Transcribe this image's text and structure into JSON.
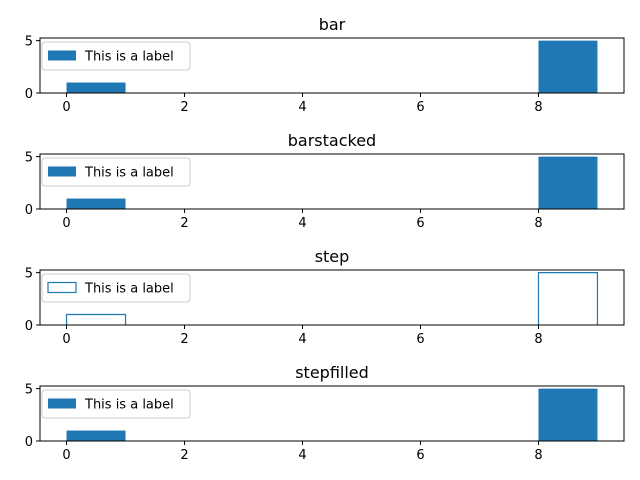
{
  "style": {
    "bar_color": "#1f77b4"
  },
  "chart_data": [
    {
      "type": "bar",
      "histtype": "bar",
      "title": "bar",
      "bin_edges": [
        0,
        1,
        2,
        3,
        4,
        5,
        6,
        7,
        8,
        9
      ],
      "values": [
        1,
        0,
        0,
        0,
        0,
        0,
        0,
        0,
        5
      ],
      "series_label": "This is a label",
      "xlim": [
        -0.45,
        9.45
      ],
      "ylim": [
        0,
        5.25
      ],
      "xticks": [
        0,
        2,
        4,
        6,
        8
      ],
      "yticks": [
        0,
        5
      ],
      "legend": "top-left"
    },
    {
      "type": "bar",
      "histtype": "barstacked",
      "title": "barstacked",
      "bin_edges": [
        0,
        1,
        2,
        3,
        4,
        5,
        6,
        7,
        8,
        9
      ],
      "values": [
        1,
        0,
        0,
        0,
        0,
        0,
        0,
        0,
        5
      ],
      "series_label": "This is a label",
      "xlim": [
        -0.45,
        9.45
      ],
      "ylim": [
        0,
        5.25
      ],
      "xticks": [
        0,
        2,
        4,
        6,
        8
      ],
      "yticks": [
        0,
        5
      ],
      "legend": "top-left"
    },
    {
      "type": "bar",
      "histtype": "step",
      "title": "step",
      "bin_edges": [
        0,
        1,
        2,
        3,
        4,
        5,
        6,
        7,
        8,
        9
      ],
      "values": [
        1,
        0,
        0,
        0,
        0,
        0,
        0,
        0,
        5
      ],
      "series_label": "This is a label",
      "xlim": [
        -0.45,
        9.45
      ],
      "ylim": [
        0,
        5.25
      ],
      "xticks": [
        0,
        2,
        4,
        6,
        8
      ],
      "yticks": [
        0,
        5
      ],
      "legend": "top-left"
    },
    {
      "type": "bar",
      "histtype": "stepfilled",
      "title": "stepfilled",
      "bin_edges": [
        0,
        1,
        2,
        3,
        4,
        5,
        6,
        7,
        8,
        9
      ],
      "values": [
        1,
        0,
        0,
        0,
        0,
        0,
        0,
        0,
        5
      ],
      "series_label": "This is a label",
      "xlim": [
        -0.45,
        9.45
      ],
      "ylim": [
        0,
        5.25
      ],
      "xticks": [
        0,
        2,
        4,
        6,
        8
      ],
      "yticks": [
        0,
        5
      ],
      "legend": "top-left"
    }
  ]
}
